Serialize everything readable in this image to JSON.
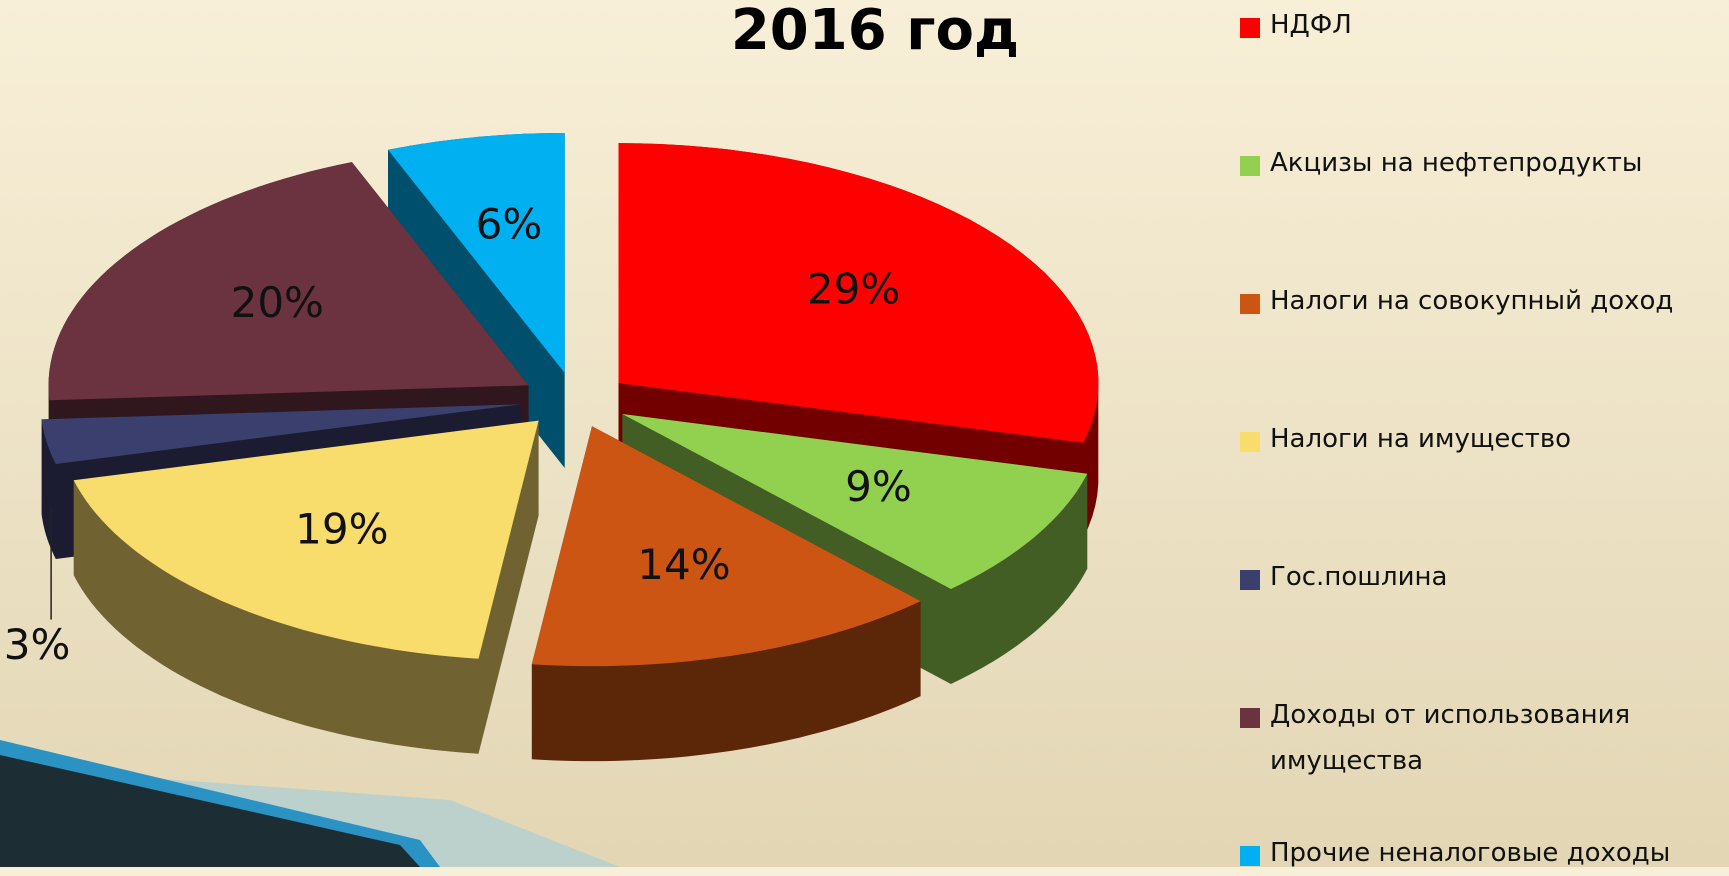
{
  "chart_data": {
    "type": "pie3d",
    "title": "2016 год",
    "categories": [
      "НДФЛ",
      "Акцизы на нефтепродукты",
      "Налоги на совокупный доход",
      "Налоги на имущество",
      "Гос.пошлина",
      "Доходы от использования имущества",
      "Прочие неналоговые доходы"
    ],
    "values": [
      29,
      9,
      14,
      19,
      3,
      20,
      6
    ],
    "value_labels": [
      "29%",
      "9%",
      "14%",
      "19%",
      "3%",
      "20%",
      "6%"
    ],
    "colors": [
      "#ff0000",
      "#92d050",
      "#cc5514",
      "#f8dc6c",
      "#3b3f6e",
      "#6b3340",
      "#00b0f0"
    ],
    "legend": "right"
  }
}
